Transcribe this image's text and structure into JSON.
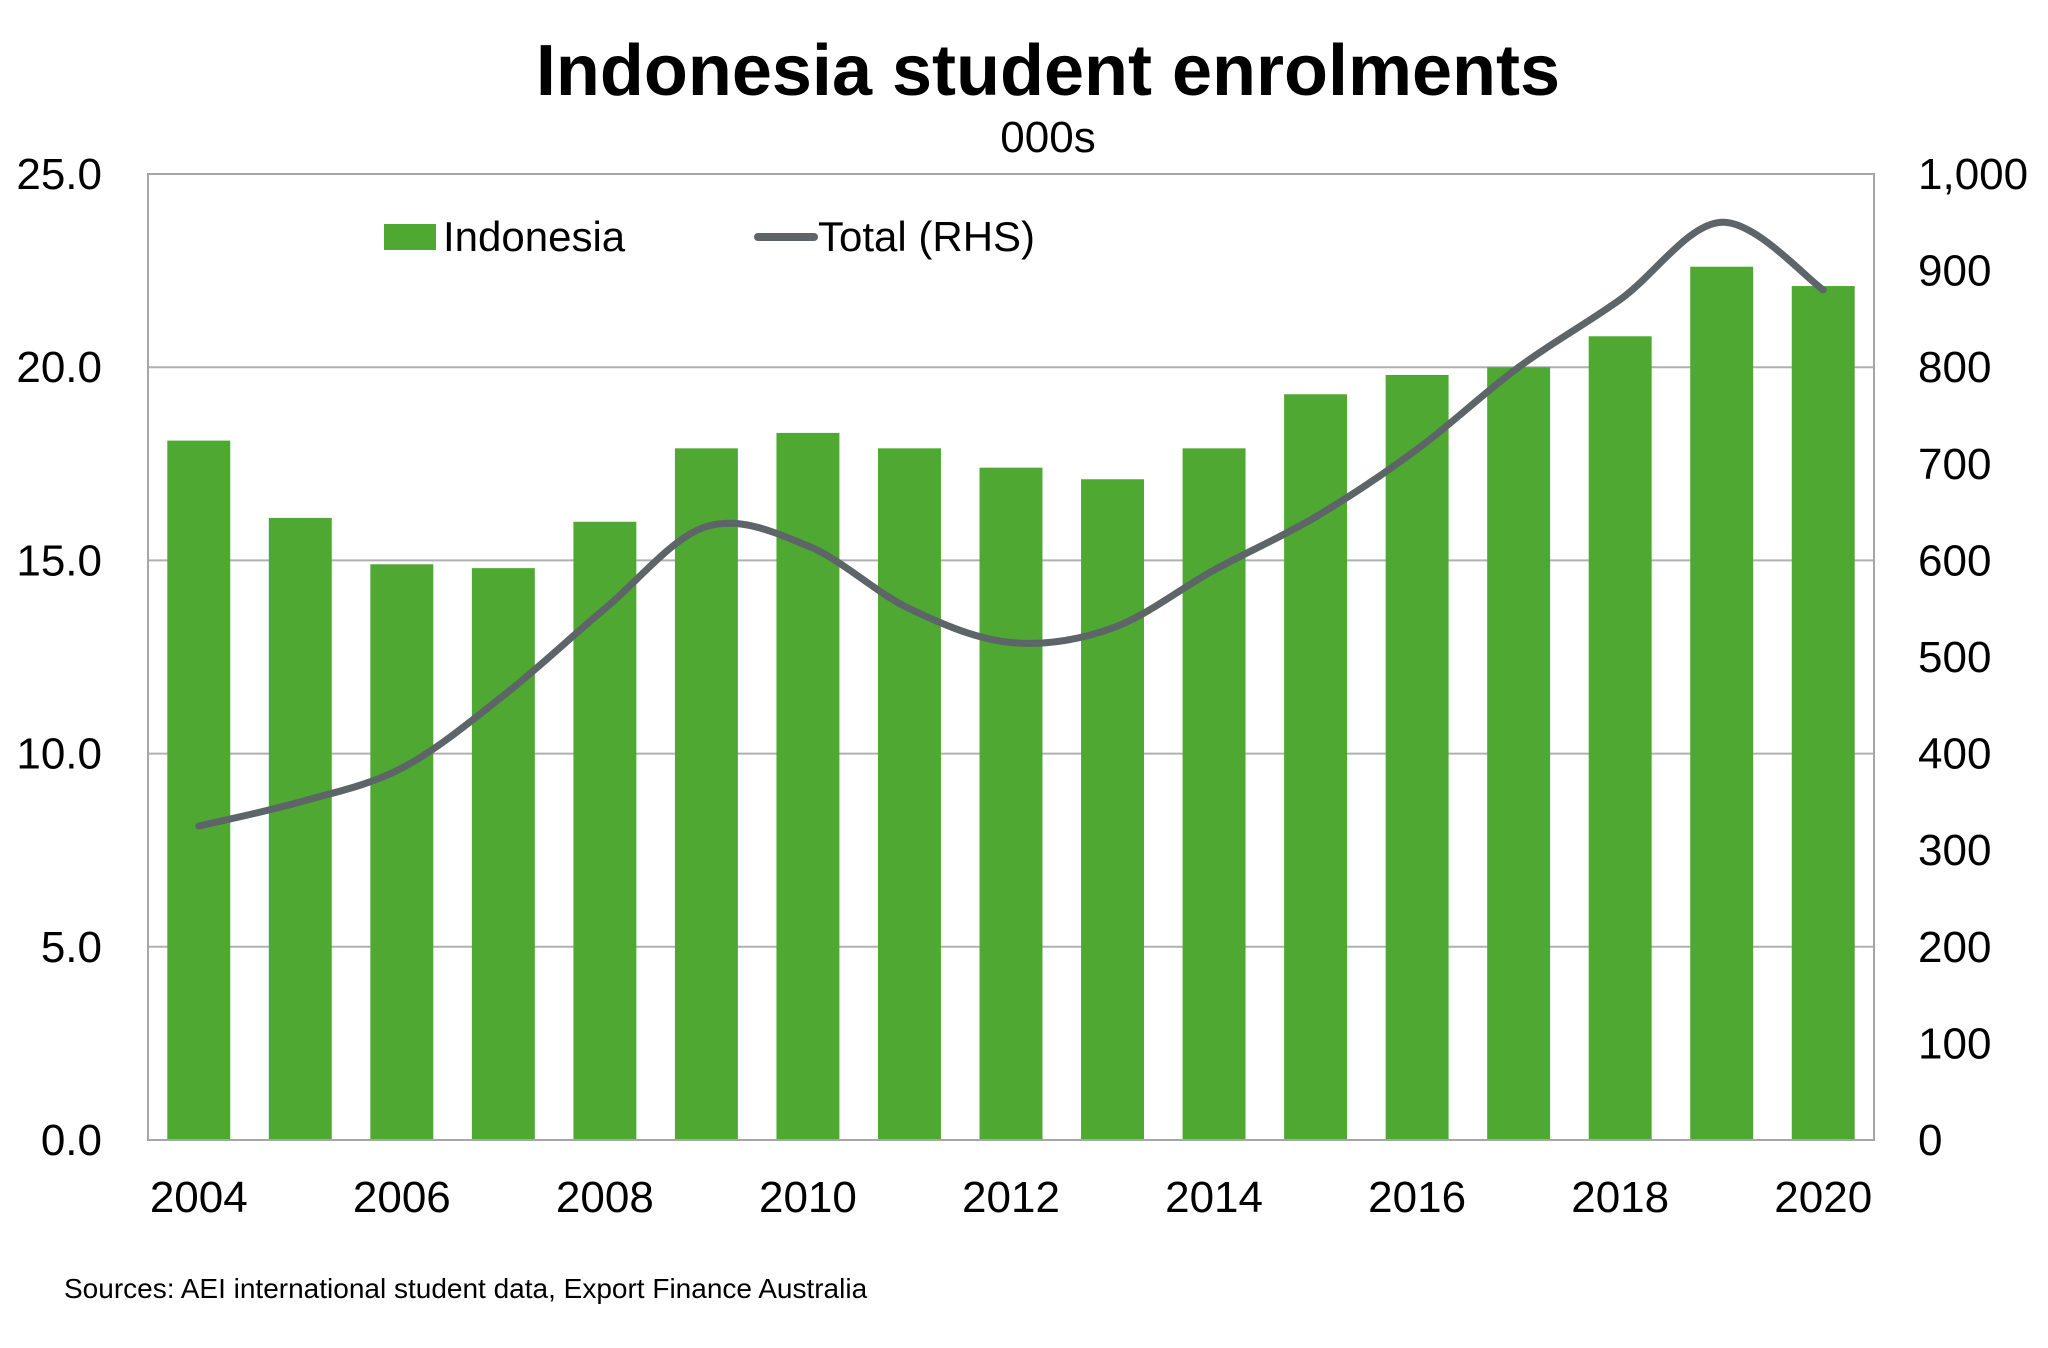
{
  "chart_data": {
    "type": "bar",
    "title": "Indonesia student enrolments",
    "subtitle": "000s",
    "categories": [
      "2004",
      "2005",
      "2006",
      "2007",
      "2008",
      "2009",
      "2010",
      "2011",
      "2012",
      "2013",
      "2014",
      "2015",
      "2016",
      "2017",
      "2018",
      "2019",
      "2020"
    ],
    "x_tick_labels": [
      "2004",
      "2006",
      "2008",
      "2010",
      "2012",
      "2014",
      "2016",
      "2018",
      "2020"
    ],
    "series": [
      {
        "name": "Indonesia",
        "type": "bar",
        "axis": "left",
        "color": "#4fa832",
        "values": [
          18.1,
          16.1,
          14.9,
          14.8,
          16.0,
          17.9,
          18.3,
          17.9,
          17.4,
          17.1,
          17.9,
          19.3,
          19.8,
          20.0,
          20.8,
          22.6,
          22.1
        ]
      },
      {
        "name": "Total (RHS)",
        "type": "line",
        "axis": "right",
        "color": "#5d6568",
        "values": [
          325,
          350,
          385,
          460,
          550,
          635,
          615,
          550,
          515,
          530,
          590,
          645,
          715,
          800,
          870,
          950,
          880
        ]
      }
    ],
    "y_left": {
      "lim": [
        0,
        25
      ],
      "ticks": [
        0,
        5,
        10,
        15,
        20,
        25
      ],
      "tick_labels": [
        "0.0",
        "5.0",
        "10.0",
        "15.0",
        "20.0",
        "25.0"
      ]
    },
    "y_right": {
      "lim": [
        0,
        1000
      ],
      "ticks": [
        0,
        100,
        200,
        300,
        400,
        500,
        600,
        700,
        800,
        900,
        1000
      ],
      "tick_labels": [
        "0",
        "100",
        "200",
        "300",
        "400",
        "500",
        "600",
        "700",
        "800",
        "900",
        "1,000"
      ]
    },
    "grid": true,
    "legend_position": "top-left",
    "source": "Sources: AEI international student data, Export Finance Australia"
  }
}
